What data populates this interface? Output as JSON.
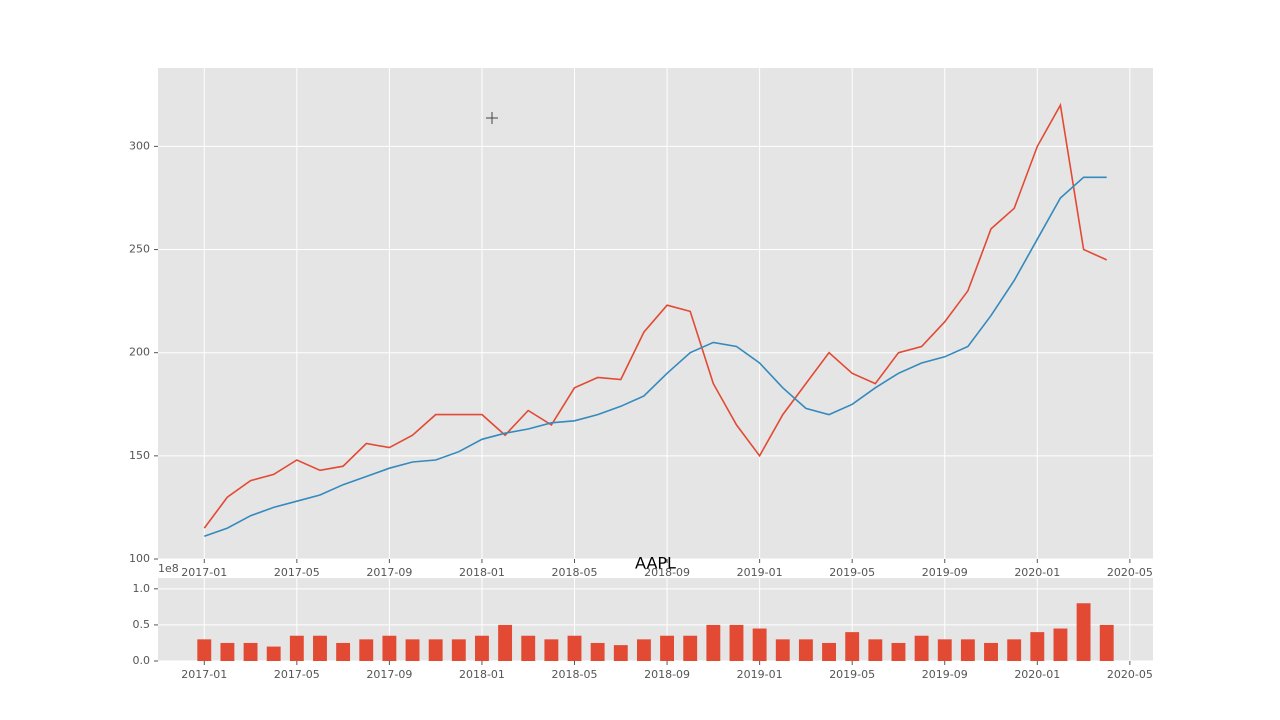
{
  "chart_data": [
    {
      "type": "line",
      "x": [
        "2017-01",
        "2017-02",
        "2017-03",
        "2017-04",
        "2017-05",
        "2017-06",
        "2017-07",
        "2017-08",
        "2017-09",
        "2017-10",
        "2017-11",
        "2017-12",
        "2018-01",
        "2018-02",
        "2018-03",
        "2018-04",
        "2018-05",
        "2018-06",
        "2018-07",
        "2018-08",
        "2018-09",
        "2018-10",
        "2018-11",
        "2018-12",
        "2019-01",
        "2019-02",
        "2019-03",
        "2019-04",
        "2019-05",
        "2019-06",
        "2019-07",
        "2019-08",
        "2019-09",
        "2019-10",
        "2019-11",
        "2019-12",
        "2020-01",
        "2020-02",
        "2020-03",
        "2020-04"
      ],
      "series": [
        {
          "color": "#E24A33",
          "values": [
            115,
            130,
            138,
            141,
            148,
            143,
            145,
            156,
            154,
            160,
            170,
            170,
            170,
            160,
            172,
            165,
            183,
            188,
            187,
            210,
            223,
            220,
            185,
            165,
            150,
            170,
            185,
            200,
            190,
            185,
            200,
            203,
            215,
            230,
            260,
            270,
            300,
            320,
            250,
            245
          ]
        },
        {
          "color": "#348ABD",
          "values": [
            111,
            115,
            121,
            125,
            128,
            131,
            136,
            140,
            144,
            147,
            148,
            152,
            158,
            161,
            163,
            166,
            167,
            170,
            174,
            179,
            190,
            200,
            205,
            203,
            195,
            183,
            173,
            170,
            175,
            183,
            190,
            195,
            198,
            203,
            218,
            235,
            255,
            275,
            285,
            285
          ]
        }
      ],
      "xlim": [
        "2016-11",
        "2020-06"
      ],
      "ylim": [
        100,
        338
      ],
      "xticks": [
        "2017-01",
        "2017-05",
        "2017-09",
        "2018-01",
        "2018-05",
        "2018-09",
        "2019-01",
        "2019-05",
        "2019-09",
        "2020-01",
        "2020-05"
      ],
      "yticks": [
        100,
        150,
        200,
        250,
        300
      ],
      "grid": true
    },
    {
      "type": "bar",
      "title": "AAPL",
      "y_offset_label": "1e8",
      "x": [
        "2017-01",
        "2017-02",
        "2017-03",
        "2017-04",
        "2017-05",
        "2017-06",
        "2017-07",
        "2017-08",
        "2017-09",
        "2017-10",
        "2017-11",
        "2017-12",
        "2018-01",
        "2018-02",
        "2018-03",
        "2018-04",
        "2018-05",
        "2018-06",
        "2018-07",
        "2018-08",
        "2018-09",
        "2018-10",
        "2018-11",
        "2018-12",
        "2019-01",
        "2019-02",
        "2019-03",
        "2019-04",
        "2019-05",
        "2019-06",
        "2019-07",
        "2019-08",
        "2019-09",
        "2019-10",
        "2019-11",
        "2019-12",
        "2020-01",
        "2020-02",
        "2020-03",
        "2020-04"
      ],
      "values": [
        0.3,
        0.25,
        0.25,
        0.2,
        0.35,
        0.35,
        0.25,
        0.3,
        0.35,
        0.3,
        0.3,
        0.3,
        0.35,
        0.5,
        0.35,
        0.3,
        0.35,
        0.25,
        0.22,
        0.3,
        0.35,
        0.35,
        0.5,
        0.5,
        0.45,
        0.3,
        0.3,
        0.25,
        0.4,
        0.3,
        0.25,
        0.35,
        0.3,
        0.3,
        0.25,
        0.3,
        0.4,
        0.45,
        0.8,
        0.5
      ],
      "color": "#E24A33",
      "xlim": [
        "2016-11",
        "2020-06"
      ],
      "ylim": [
        0,
        1.15
      ],
      "xticks": [
        "2017-01",
        "2017-05",
        "2017-09",
        "2018-01",
        "2018-05",
        "2018-09",
        "2019-01",
        "2019-05",
        "2019-09",
        "2020-01",
        "2020-05"
      ],
      "yticks": [
        {
          "value": 0,
          "label": "0.0"
        },
        0.5,
        {
          "value": 1,
          "label": "1.0"
        }
      ],
      "grid": true
    }
  ]
}
